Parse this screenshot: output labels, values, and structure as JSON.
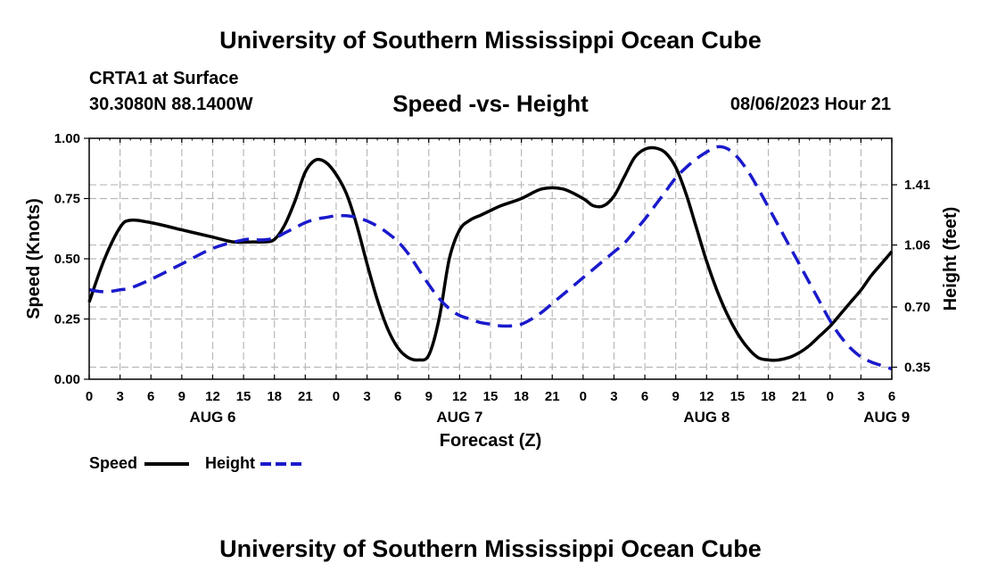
{
  "header": {
    "title": "University of Southern Mississippi Ocean Cube",
    "station": "CRTA1 at Surface",
    "coords": "30.3080N  88.1400W",
    "subtitle": "Speed -vs- Height",
    "datetime": "08/06/2023 Hour 21"
  },
  "footer": {
    "title": "University of Southern Mississippi Ocean Cube"
  },
  "legend": {
    "speed_label": "Speed",
    "height_label": "Height"
  },
  "colors": {
    "speed": "#000000",
    "height": "#1a1acc",
    "grid": "#b8b8b8"
  },
  "chart_data": {
    "type": "line",
    "title": "Speed -vs- Height",
    "xlabel": "Forecast (Z)",
    "ylabel": "Speed (Knots)",
    "y2label": "Height (feet)",
    "xlim": [
      0,
      78
    ],
    "ylim": [
      0,
      1.0
    ],
    "y2lim": [
      0.28,
      1.68
    ],
    "x_tick_labels": [
      "0",
      "3",
      "6",
      "9",
      "12",
      "15",
      "18",
      "21",
      "0",
      "3",
      "6",
      "9",
      "12",
      "15",
      "18",
      "21",
      "0",
      "3",
      "6",
      "9",
      "12",
      "15",
      "18",
      "21",
      "0",
      "3",
      "6"
    ],
    "day_labels": [
      {
        "label": "AUG 6",
        "x": 12
      },
      {
        "label": "AUG 7",
        "x": 36
      },
      {
        "label": "AUG 8",
        "x": 60
      },
      {
        "label": "AUG 9",
        "x": 77.5
      }
    ],
    "y_ticks": [
      {
        "value": 0.0,
        "label": "0.00"
      },
      {
        "value": 0.25,
        "label": "0.25"
      },
      {
        "value": 0.5,
        "label": "0.50"
      },
      {
        "value": 0.75,
        "label": "0.75"
      },
      {
        "value": 1.0,
        "label": "1.00"
      }
    ],
    "y2_ticks": [
      {
        "value": 0.35,
        "label": "0.35"
      },
      {
        "value": 0.7,
        "label": "0.70"
      },
      {
        "value": 1.06,
        "label": "1.06"
      },
      {
        "value": 1.41,
        "label": "1.41"
      }
    ],
    "series": [
      {
        "name": "Speed",
        "axis": "left",
        "x": [
          0,
          1.5,
          3,
          4,
          6,
          9,
          12,
          14,
          16,
          17,
          18,
          19,
          20,
          21,
          22,
          23,
          24,
          25,
          26,
          27,
          28,
          29,
          30,
          31,
          32,
          33,
          34,
          35,
          36,
          37,
          38,
          38.5,
          39,
          40,
          42,
          44,
          46,
          48,
          49,
          50,
          51,
          52,
          53,
          54,
          55,
          56,
          57,
          58,
          59,
          60,
          61,
          62,
          63,
          64,
          65,
          66,
          67,
          68,
          69,
          70,
          71,
          72,
          73,
          74,
          75,
          76,
          77,
          78
        ],
        "values": [
          0.32,
          0.5,
          0.63,
          0.66,
          0.65,
          0.62,
          0.59,
          0.57,
          0.57,
          0.57,
          0.58,
          0.64,
          0.74,
          0.86,
          0.91,
          0.9,
          0.85,
          0.77,
          0.64,
          0.48,
          0.33,
          0.21,
          0.13,
          0.09,
          0.08,
          0.1,
          0.25,
          0.5,
          0.62,
          0.66,
          0.68,
          0.69,
          0.7,
          0.72,
          0.75,
          0.79,
          0.79,
          0.75,
          0.72,
          0.72,
          0.76,
          0.84,
          0.92,
          0.955,
          0.96,
          0.94,
          0.88,
          0.77,
          0.63,
          0.49,
          0.37,
          0.27,
          0.19,
          0.13,
          0.09,
          0.08,
          0.08,
          0.09,
          0.11,
          0.14,
          0.18,
          0.22,
          0.27,
          0.32,
          0.37,
          0.43,
          0.48,
          0.53
        ]
      },
      {
        "name": "Height",
        "axis": "right",
        "x": [
          0,
          1,
          2,
          3,
          4,
          6,
          9,
          12,
          15,
          16,
          17,
          18,
          19,
          20,
          21,
          22,
          23,
          24,
          25,
          26,
          27,
          28,
          29,
          30,
          31,
          32,
          33,
          34,
          35,
          36,
          37,
          38,
          39,
          40,
          41,
          42,
          43,
          44,
          45,
          46,
          47,
          48,
          49,
          50,
          51,
          52,
          53,
          54,
          55,
          56,
          57,
          58,
          59,
          60,
          61,
          62,
          63,
          64,
          65,
          66,
          67,
          68,
          69,
          70,
          71,
          72,
          73,
          74,
          75,
          76,
          77,
          78
        ],
        "values": [
          0.8,
          0.79,
          0.79,
          0.8,
          0.81,
          0.86,
          0.95,
          1.04,
          1.09,
          1.09,
          1.09,
          1.1,
          1.13,
          1.16,
          1.19,
          1.21,
          1.22,
          1.23,
          1.23,
          1.22,
          1.2,
          1.17,
          1.13,
          1.08,
          1.01,
          0.92,
          0.83,
          0.75,
          0.69,
          0.65,
          0.63,
          0.61,
          0.6,
          0.59,
          0.59,
          0.6,
          0.63,
          0.67,
          0.72,
          0.77,
          0.82,
          0.87,
          0.92,
          0.97,
          1.02,
          1.07,
          1.14,
          1.21,
          1.29,
          1.37,
          1.45,
          1.51,
          1.56,
          1.6,
          1.63,
          1.62,
          1.57,
          1.49,
          1.39,
          1.28,
          1.17,
          1.06,
          0.95,
          0.84,
          0.73,
          0.62,
          0.53,
          0.46,
          0.41,
          0.38,
          0.36,
          0.34
        ]
      }
    ]
  }
}
